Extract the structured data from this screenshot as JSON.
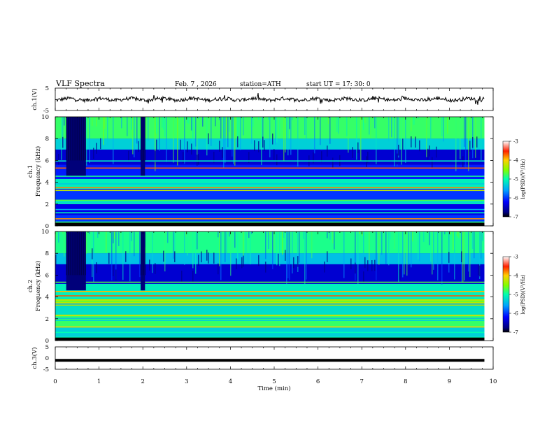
{
  "header": {
    "title": "VLF  Spectra",
    "date": "Feb. 7  , 2026",
    "station": "station=ATH",
    "start_ut": "start  UT  =   17: 30: 0"
  },
  "chart_data": [
    {
      "type": "line",
      "id": "ch1-waveform",
      "ylabel": "ch.1(V)",
      "ylim": [
        -5,
        5
      ],
      "yticks": [
        "5",
        "-5"
      ],
      "xlim": [
        0,
        10
      ],
      "description_values": "voltage trace around 0 V over 0–9.8 min",
      "x_end": 9.8
    },
    {
      "type": "heatmap",
      "id": "ch1-spectrogram",
      "ylabel_top": "ch.1",
      "ylabel": "Frequency  (kHz)",
      "ylim": [
        0,
        10
      ],
      "yticks": [
        "0",
        "2",
        "4",
        "6",
        "8",
        "10"
      ],
      "xlim": [
        0,
        10
      ],
      "x_end": 9.8,
      "colorbar": {
        "label": "log(PSD)(V²/Hz)",
        "range": [
          -7,
          -3
        ],
        "ticks": [
          "-3",
          "-4",
          "-5",
          "-6",
          "-7"
        ]
      },
      "bands": [
        {
          "f0": 0.0,
          "f1": 0.3,
          "level": -7.0
        },
        {
          "f0": 0.3,
          "f1": 1.0,
          "level": -6.0
        },
        {
          "f0": 1.0,
          "f1": 2.0,
          "level": -6.3
        },
        {
          "f0": 2.0,
          "f1": 2.3,
          "level": -5.0
        },
        {
          "f0": 2.3,
          "f1": 3.4,
          "level": -6.0
        },
        {
          "f0": 3.4,
          "f1": 4.3,
          "level": -5.1
        },
        {
          "f0": 4.3,
          "f1": 5.6,
          "level": -6.1
        },
        {
          "f0": 5.6,
          "f1": 7.0,
          "level": -6.4
        },
        {
          "f0": 7.0,
          "f1": 8.0,
          "level": -5.3
        },
        {
          "f0": 8.0,
          "f1": 10.0,
          "level": -4.8
        }
      ],
      "lines_khz": [
        0.2,
        0.35,
        0.65,
        1.2,
        1.5,
        2.15,
        2.35,
        3.25,
        3.5,
        3.85,
        4.55,
        5.3,
        5.95
      ],
      "dark_intervals_min": [
        [
          0.25,
          0.7
        ],
        [
          1.95,
          2.05
        ]
      ]
    },
    {
      "type": "heatmap",
      "id": "ch2-spectrogram",
      "ylabel_top": "ch.2",
      "ylabel": "Frequency  (kHz)",
      "ylim": [
        0,
        10
      ],
      "yticks": [
        "0",
        "2",
        "4",
        "6",
        "8",
        "10"
      ],
      "xlim": [
        0,
        10
      ],
      "x_end": 9.8,
      "colorbar": {
        "label": "log(PSD)(V²/Hz)",
        "range": [
          -7,
          -3
        ],
        "ticks": [
          "-3",
          "-4",
          "-5",
          "-6",
          "-7"
        ]
      },
      "bands": [
        {
          "f0": 0.0,
          "f1": 0.3,
          "level": -7.0
        },
        {
          "f0": 0.3,
          "f1": 1.2,
          "level": -5.3
        },
        {
          "f0": 1.2,
          "f1": 2.4,
          "level": -4.8
        },
        {
          "f0": 2.4,
          "f1": 3.2,
          "level": -5.2
        },
        {
          "f0": 3.2,
          "f1": 3.8,
          "level": -4.3
        },
        {
          "f0": 3.8,
          "f1": 5.2,
          "level": -5.1
        },
        {
          "f0": 5.2,
          "f1": 7.0,
          "level": -6.4
        },
        {
          "f0": 7.0,
          "f1": 8.0,
          "level": -5.4
        },
        {
          "f0": 8.0,
          "f1": 10.0,
          "level": -4.9
        }
      ],
      "lines_khz": [
        0.3,
        0.75,
        1.25,
        1.85,
        2.05,
        2.3,
        3.35,
        3.6,
        4.1,
        4.5,
        5.35
      ],
      "dark_intervals_min": [
        [
          0.25,
          0.7
        ],
        [
          1.95,
          2.05
        ]
      ]
    },
    {
      "type": "line",
      "id": "ch3-waveform",
      "ylabel": "ch.3(V)",
      "ylim": [
        -5,
        5
      ],
      "yticks": [
        "5",
        "0",
        "-5"
      ],
      "xlim": [
        0,
        10
      ],
      "x_end": 9.8,
      "level_v": -1.0,
      "xlabel": "Time  (min)",
      "xticks": [
        "0",
        "1",
        "2",
        "3",
        "4",
        "5",
        "6",
        "7",
        "8",
        "9",
        "10"
      ]
    }
  ]
}
